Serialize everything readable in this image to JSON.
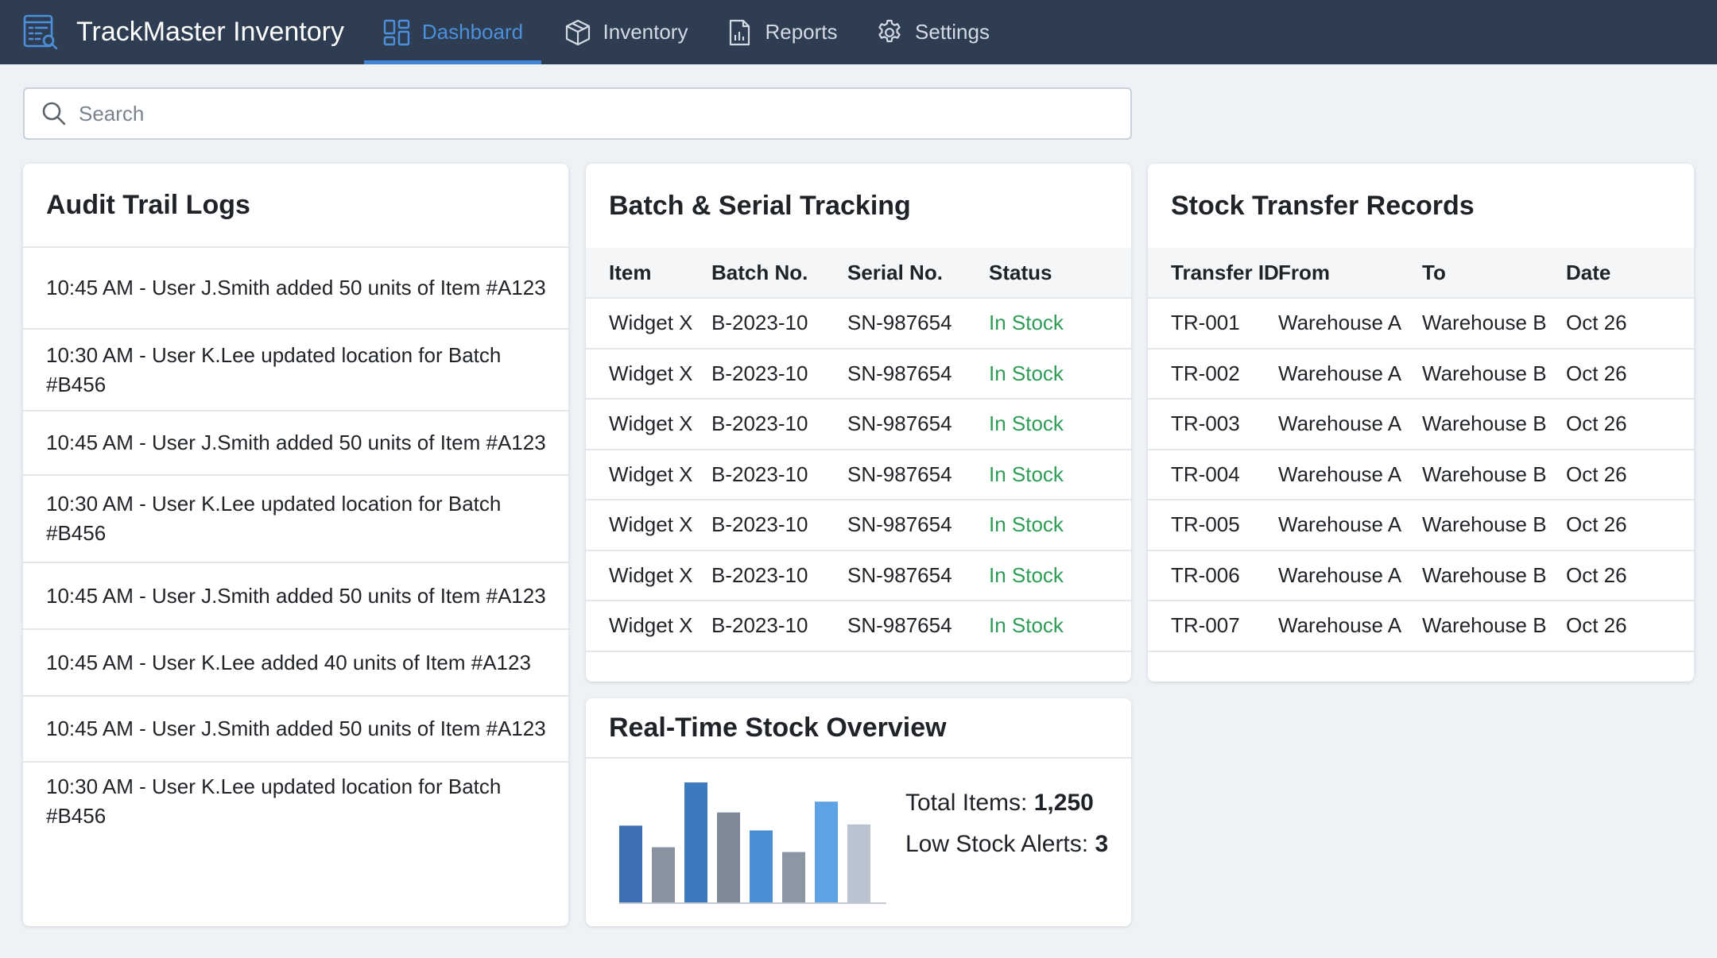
{
  "app": {
    "title": "TrackMaster Inventory",
    "icon": "inventory-report-icon"
  },
  "nav": {
    "active": "Dashboard",
    "tabs": [
      {
        "label": "Dashboard",
        "icon": "dashboard-grid-icon"
      },
      {
        "label": "Inventory",
        "icon": "package-box-icon"
      },
      {
        "label": "Reports",
        "icon": "report-document-icon"
      },
      {
        "label": "Settings",
        "icon": "gear-icon"
      }
    ]
  },
  "search": {
    "placeholder": "Search",
    "value": ""
  },
  "audit": {
    "title": "Audit Trail Logs",
    "entries": [
      "10:45 AM - User J.Smith added 50 units of Item #A123",
      "10:30 AM - User K.Lee updated location for Batch #B456",
      "10:45 AM - User J.Smith added 50 units of Item #A123",
      "10:30 AM - User K.Lee updated location for Batch #B456",
      "10:45 AM - User J.Smith added 50 units of Item #A123",
      "10:45 AM - User K.Lee added 40 units of Item #A123",
      "10:45 AM - User J.Smith added 50 units of Item #A123",
      "10:30 AM - User K.Lee updated location for Batch #B456"
    ]
  },
  "batch": {
    "title": "Batch & Serial Tracking",
    "columns": [
      "Item",
      "Batch No.",
      "Serial No.",
      "Status"
    ],
    "rows": [
      [
        "Widget X",
        "B-2023-10",
        "SN-987654",
        "In Stock"
      ],
      [
        "Widget X",
        "B-2023-10",
        "SN-987654",
        "In Stock"
      ],
      [
        "Widget X",
        "B-2023-10",
        "SN-987654",
        "In Stock"
      ],
      [
        "Widget X",
        "B-2023-10",
        "SN-987654",
        "In Stock"
      ],
      [
        "Widget X",
        "B-2023-10",
        "SN-987654",
        "In Stock"
      ],
      [
        "Widget X",
        "B-2023-10",
        "SN-987654",
        "In Stock"
      ],
      [
        "Widget X",
        "B-2023-10",
        "SN-987654",
        "In Stock"
      ]
    ]
  },
  "transfers": {
    "title": "Stock Transfer Records",
    "columns": [
      "Transfer ID",
      "From",
      "To",
      "Date"
    ],
    "rows": [
      [
        "TR-001",
        "Warehouse A",
        "Warehouse B",
        "Oct 26"
      ],
      [
        "TR-002",
        "Warehouse A",
        "Warehouse B",
        "Oct 26"
      ],
      [
        "TR-003",
        "Warehouse A",
        "Warehouse B",
        "Oct 26"
      ],
      [
        "TR-004",
        "Warehouse A",
        "Warehouse B",
        "Oct 26"
      ],
      [
        "TR-005",
        "Warehouse A",
        "Warehouse B",
        "Oct 26"
      ],
      [
        "TR-006",
        "Warehouse A",
        "Warehouse B",
        "Oct 26"
      ],
      [
        "TR-007",
        "Warehouse A",
        "Warehouse B",
        "Oct 26"
      ]
    ]
  },
  "overview": {
    "title": "Real-Time Stock Overview",
    "total_items_label": "Total Items:",
    "total_items_value": "1,250",
    "low_stock_label": "Low Stock Alerts:",
    "low_stock_value": "3",
    "bar_levels": [
      0.64,
      0.46,
      1.0,
      0.75,
      0.6,
      0.42,
      0.84,
      0.65
    ],
    "bar_colors": [
      "#3f6fb3",
      "#8a93a0",
      "#3d79bf",
      "#7f8a98",
      "#4a8fd6",
      "#8d96a3",
      "#5ea2e6",
      "#bac4d0"
    ]
  },
  "colors": {
    "topbar": "#2e3d52",
    "accent": "#3f85d8",
    "status_in_stock": "#2e9c57",
    "background": "#eef2f6"
  }
}
